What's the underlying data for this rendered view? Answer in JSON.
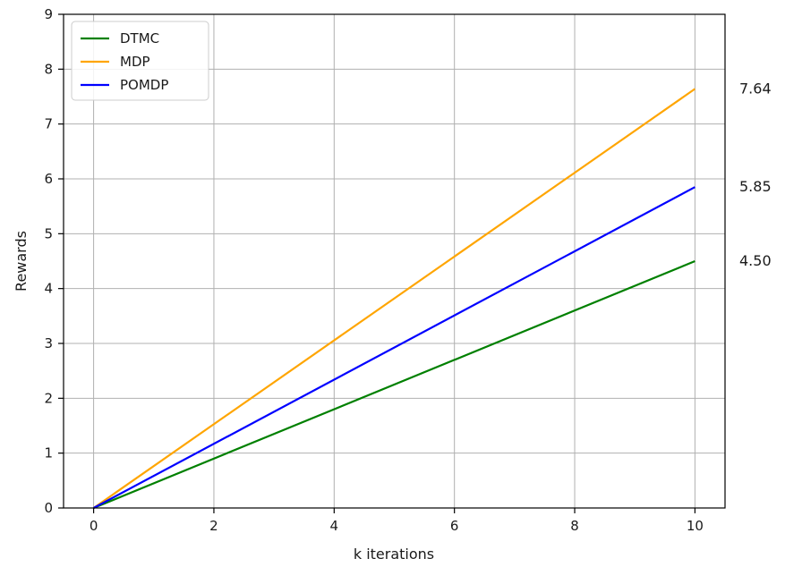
{
  "chart_data": {
    "type": "line",
    "xlabel": "k iterations",
    "ylabel": "Rewards",
    "xlim": [
      -0.5,
      10.5
    ],
    "ylim": [
      0,
      9
    ],
    "x_ticks": [
      0,
      2,
      4,
      6,
      8,
      10
    ],
    "y_ticks": [
      0,
      1,
      2,
      3,
      4,
      5,
      6,
      7,
      8,
      9
    ],
    "grid": true,
    "legend_position": "top-left",
    "series": [
      {
        "name": "DTMC",
        "color": "#008000",
        "x": [
          0,
          10
        ],
        "values": [
          0,
          4.5
        ],
        "end_label": "4.50"
      },
      {
        "name": "MDP",
        "color": "#FFA500",
        "x": [
          0,
          10
        ],
        "values": [
          0,
          7.64
        ],
        "end_label": "7.64"
      },
      {
        "name": "POMDP",
        "color": "#0000FF",
        "x": [
          0,
          10
        ],
        "values": [
          0,
          5.85
        ],
        "end_label": "5.85"
      }
    ]
  }
}
